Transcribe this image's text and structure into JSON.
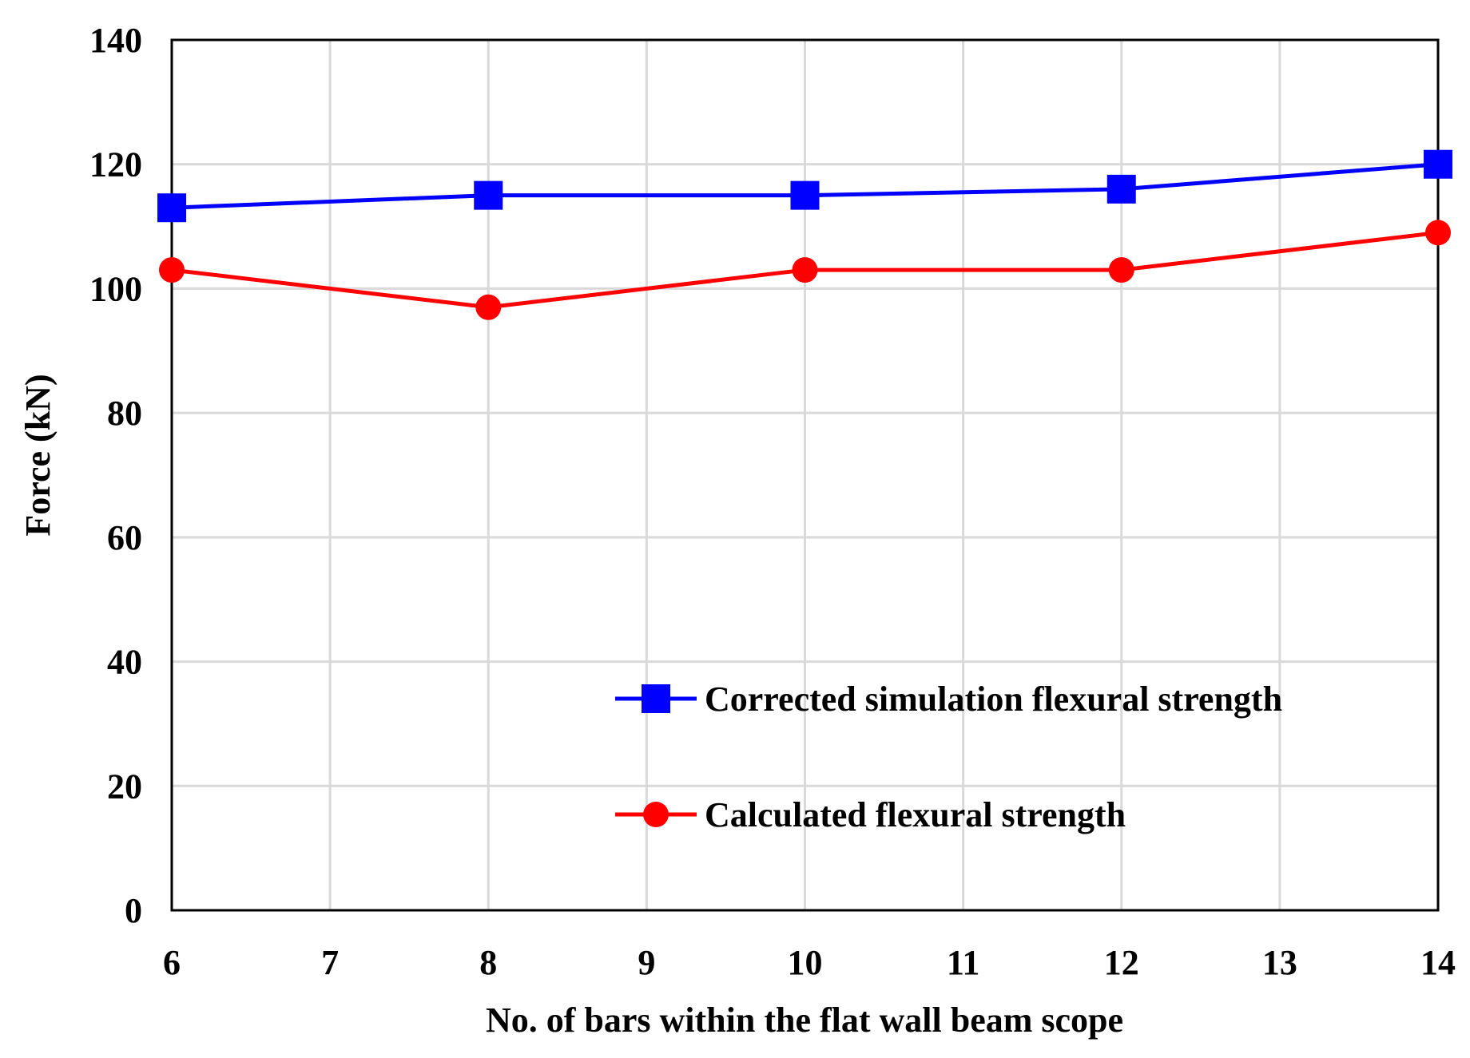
{
  "chart_data": {
    "type": "line",
    "title": "",
    "xlabel": "No. of bars within the flat wall beam scope",
    "ylabel": "Force (kN)",
    "xlim": [
      6,
      14
    ],
    "ylim": [
      0,
      140
    ],
    "x_ticks": [
      6,
      7,
      8,
      9,
      10,
      11,
      12,
      13,
      14
    ],
    "y_ticks": [
      0,
      20,
      40,
      60,
      80,
      100,
      120,
      140
    ],
    "grid": true,
    "legend_position": "bottom-right",
    "series": [
      {
        "name": "Corrected simulation flexural strength",
        "color": "#0000ff",
        "marker": "square",
        "x": [
          6,
          8,
          10,
          12,
          14
        ],
        "y": [
          113,
          115,
          115,
          116,
          120
        ]
      },
      {
        "name": "Calculated flexural strength",
        "color": "#ff0000",
        "marker": "circle",
        "x": [
          6,
          8,
          10,
          12,
          14
        ],
        "y": [
          103,
          97,
          103,
          103,
          109
        ]
      }
    ]
  }
}
